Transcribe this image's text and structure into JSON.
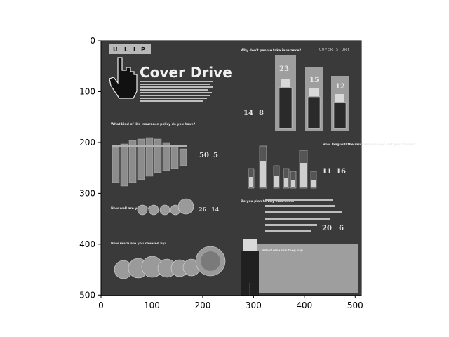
{
  "axes": {
    "x_ticks": [
      "0",
      "100",
      "200",
      "300",
      "400",
      "500"
    ],
    "y_ticks": [
      "0",
      "100",
      "200",
      "300",
      "400",
      "500"
    ]
  },
  "image": {
    "header_letters": [
      "U",
      "L",
      "I",
      "P"
    ],
    "section_tag": "COVER STORY",
    "title": "Cover Drive",
    "intro_text": "Talk about insurance and note the lack of interest people show in it. So, when we conducted the first ever Online Survey in August, we weren't prepared for the kind of response it would generate or the results it would throw up. The average insurance cover of the 323 respondents was about Rs 12,000, much above the national average of Rs 12,000. Here's what the survey revealed:",
    "q_kind": "What kind of life insurance policy do you have?",
    "q_why_not": "Why don't people take insurance?",
    "q_how_long": "How long will the insurance money last your family?",
    "q_insured": "How well are you insured?",
    "q_plan": "Do you plan to buy insurance?",
    "q_how_much": "How much are you covered by?",
    "what_else": "What else did they say",
    "stats": {
      "s1": "50",
      "s2": "5",
      "s3": "26",
      "s4": "14",
      "s5": "14",
      "s6": "8",
      "s7": "11",
      "s8": "16",
      "s9": "20",
      "s10": "6",
      "top1": "23",
      "top2": "15",
      "top3": "12"
    }
  }
}
